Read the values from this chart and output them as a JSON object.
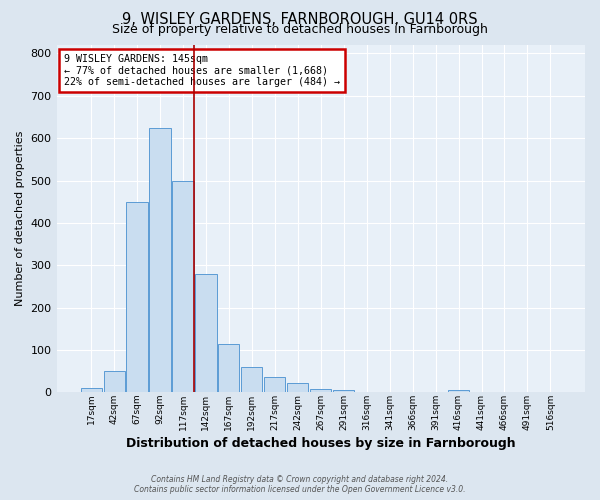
{
  "title": "9, WISLEY GARDENS, FARNBOROUGH, GU14 0RS",
  "subtitle": "Size of property relative to detached houses in Farnborough",
  "xlabel": "Distribution of detached houses by size in Farnborough",
  "ylabel": "Number of detached properties",
  "bar_labels": [
    "17sqm",
    "42sqm",
    "67sqm",
    "92sqm",
    "117sqm",
    "142sqm",
    "167sqm",
    "192sqm",
    "217sqm",
    "242sqm",
    "267sqm",
    "291sqm",
    "316sqm",
    "341sqm",
    "366sqm",
    "391sqm",
    "416sqm",
    "441sqm",
    "466sqm",
    "491sqm",
    "516sqm"
  ],
  "bar_values": [
    10,
    50,
    450,
    625,
    500,
    280,
    115,
    60,
    35,
    22,
    8,
    5,
    0,
    0,
    0,
    0,
    5,
    0,
    0,
    0,
    0
  ],
  "bar_color": "#c9ddf0",
  "bar_edge_color": "#5b9bd5",
  "vline_color": "#aa0000",
  "annotation_title": "9 WISLEY GARDENS: 145sqm",
  "annotation_line1": "← 77% of detached houses are smaller (1,668)",
  "annotation_line2": "22% of semi-detached houses are larger (484) →",
  "annotation_box_color": "#cc0000",
  "ylim": [
    0,
    820
  ],
  "yticks": [
    0,
    100,
    200,
    300,
    400,
    500,
    600,
    700,
    800
  ],
  "footer1": "Contains HM Land Registry data © Crown copyright and database right 2024.",
  "footer2": "Contains public sector information licensed under the Open Government Licence v3.0.",
  "bg_color": "#dce6f0",
  "plot_bg_color": "#e8f0f8",
  "title_fontsize": 10.5,
  "subtitle_fontsize": 9
}
